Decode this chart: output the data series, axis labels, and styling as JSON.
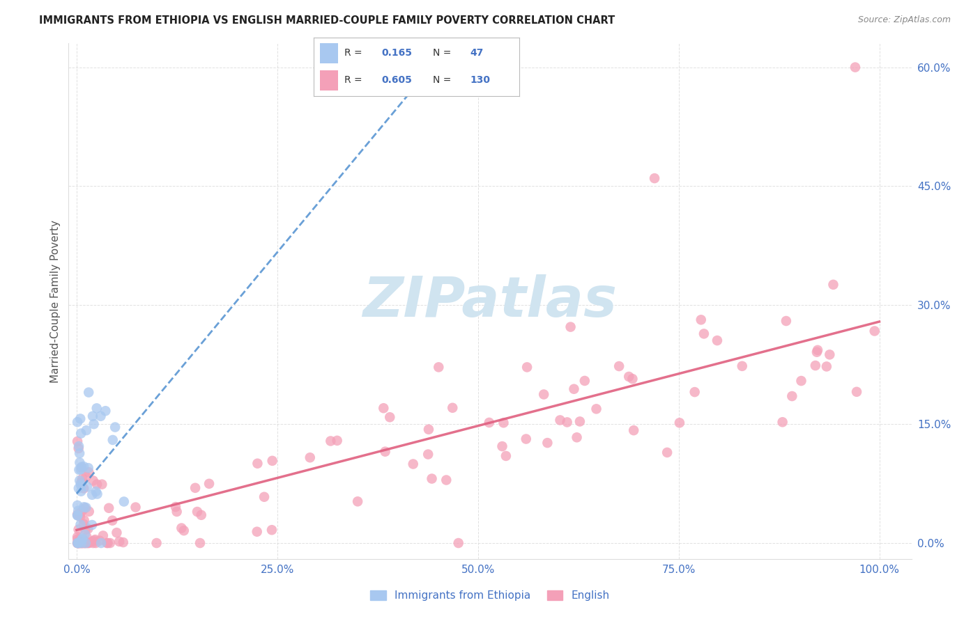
{
  "title": "IMMIGRANTS FROM ETHIOPIA VS ENGLISH MARRIED-COUPLE FAMILY POVERTY CORRELATION CHART",
  "source": "Source: ZipAtlas.com",
  "xlabel_ticks": [
    "0.0%",
    "25.0%",
    "50.0%",
    "75.0%",
    "100.0%"
  ],
  "xlabel_tick_vals": [
    0,
    25,
    50,
    75,
    100
  ],
  "ylabel": "Married-Couple Family Poverty",
  "ylabel_ticks": [
    "0.0%",
    "15.0%",
    "30.0%",
    "45.0%",
    "60.0%"
  ],
  "ylabel_tick_vals": [
    0,
    15,
    30,
    45,
    60
  ],
  "xlim": [
    -1,
    104
  ],
  "ylim": [
    -2,
    63
  ],
  "legend_labels": [
    "Immigrants from Ethiopia",
    "English"
  ],
  "blue_R": "0.165",
  "blue_N": "47",
  "pink_R": "0.605",
  "pink_N": "130",
  "blue_color": "#a8c8f0",
  "pink_color": "#f4a0b8",
  "blue_line_color": "#5090d0",
  "pink_line_color": "#e06080",
  "watermark_color": "#d0e4f0",
  "grid_color": "#dddddd",
  "tick_color": "#4472c4",
  "title_color": "#222222",
  "source_color": "#888888",
  "ylabel_color": "#555555"
}
